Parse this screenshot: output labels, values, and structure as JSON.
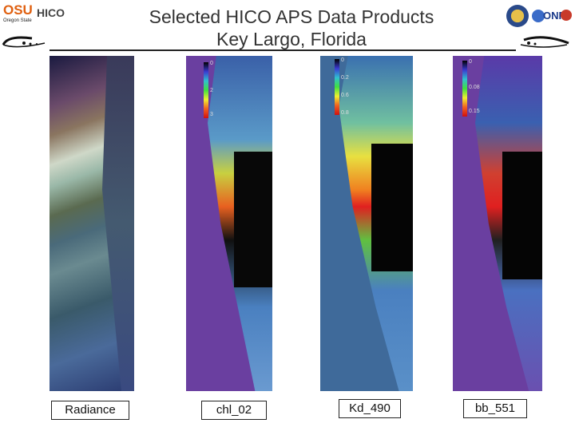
{
  "header": {
    "title_line1": "Selected HICO APS Data Products",
    "title_line2": "Key Largo, Florida",
    "osu_logo_text": "OSU",
    "osu_subtext": "Oregon State",
    "hico_logo_text": "HICO",
    "onr_logo_text": "ONR"
  },
  "panels": [
    {
      "label": "Radiance",
      "scale": []
    },
    {
      "label": "chl_02",
      "scale": [
        "0",
        "2",
        "3"
      ]
    },
    {
      "label": "Kd_490",
      "scale": [
        "0",
        "0.2",
        "0.6",
        "0.8"
      ]
    },
    {
      "label": "bb_551",
      "scale": [
        "0",
        "0.08",
        "0.15"
      ]
    }
  ]
}
